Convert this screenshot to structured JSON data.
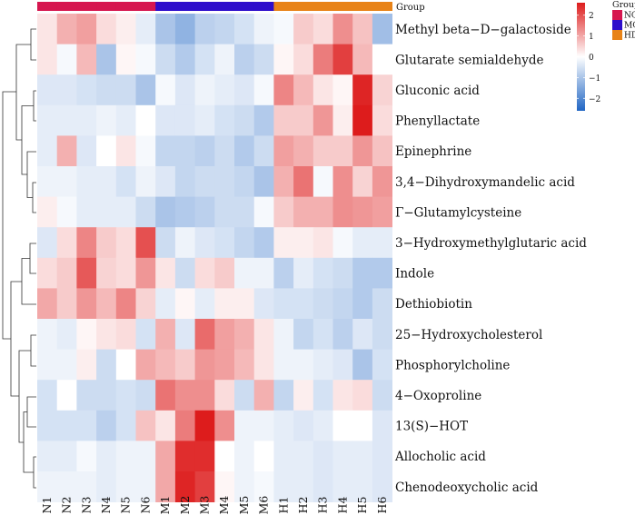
{
  "chart_data": {
    "type": "heatmap",
    "title": "",
    "columns": [
      "N1",
      "N2",
      "N3",
      "N4",
      "N5",
      "N6",
      "M1",
      "M2",
      "M3",
      "M4",
      "M5",
      "M6",
      "H1",
      "H2",
      "H3",
      "H4",
      "H5",
      "H6"
    ],
    "groups": [
      "NG",
      "NG",
      "NG",
      "NG",
      "NG",
      "NG",
      "MG",
      "MG",
      "MG",
      "MG",
      "MG",
      "MG",
      "HDG",
      "HDG",
      "HDG",
      "HDG",
      "HDG",
      "HDG"
    ],
    "group_annotation_label": "Group",
    "group_legend": {
      "title": "Group",
      "items": [
        {
          "name": "NG",
          "color": "#d6174f"
        },
        {
          "name": "MG",
          "color": "#2d0ecb"
        },
        {
          "name": "HDG",
          "color": "#e88318"
        }
      ]
    },
    "colorbar": {
      "ticks": [
        2,
        1,
        0,
        -1,
        -2
      ],
      "tick_labels": [
        "2",
        "1",
        "0",
        "−1",
        "−2"
      ],
      "range": [
        -2.6,
        2.6
      ],
      "low_color": "#2166c4",
      "mid_color": "#ffffff",
      "high_color": "#dd1c1c"
    },
    "rows": [
      {
        "name": "Methyl beta−D−galactoside",
        "values": [
          0.3,
          0.9,
          1.1,
          0.4,
          0.2,
          -0.3,
          -1.0,
          -1.3,
          -0.8,
          -0.7,
          -0.5,
          -0.2,
          -0.1,
          0.6,
          0.4,
          1.3,
          0.7,
          -1.1
        ]
      },
      {
        "name": "Glutarate semialdehyde",
        "values": [
          0.3,
          -0.1,
          0.8,
          -1.0,
          0.1,
          -0.1,
          -0.6,
          -0.9,
          -0.5,
          -0.2,
          -0.8,
          -0.6,
          0.1,
          0.4,
          1.5,
          2.2,
          0.8,
          0.0
        ]
      },
      {
        "name": "Gluconic acid",
        "values": [
          -0.4,
          -0.4,
          -0.5,
          -0.6,
          -0.6,
          -1.0,
          -0.1,
          -0.4,
          -0.2,
          -0.3,
          -0.4,
          -0.1,
          1.4,
          0.8,
          0.3,
          0.1,
          2.5,
          0.5
        ]
      },
      {
        "name": "Phenyllactate",
        "values": [
          -0.3,
          -0.3,
          -0.3,
          -0.2,
          -0.3,
          0.0,
          -0.4,
          -0.4,
          -0.3,
          -0.5,
          -0.6,
          -0.9,
          0.6,
          0.6,
          1.2,
          0.2,
          2.6,
          0.4
        ]
      },
      {
        "name": "Epinephrine",
        "values": [
          -0.3,
          0.9,
          -0.4,
          0.0,
          0.3,
          -0.1,
          -0.7,
          -0.7,
          -0.8,
          -0.6,
          -0.9,
          -0.6,
          1.1,
          0.9,
          0.6,
          0.6,
          1.2,
          0.7
        ]
      },
      {
        "name": "3,4−Dihydroxymandelic acid",
        "values": [
          -0.2,
          -0.2,
          -0.3,
          -0.3,
          -0.5,
          -0.2,
          -0.4,
          -0.7,
          -0.6,
          -0.6,
          -0.7,
          -1.0,
          0.9,
          1.6,
          -0.1,
          1.3,
          0.5,
          1.2
        ]
      },
      {
        "name": "Γ−Glutamylcysteine",
        "values": [
          0.2,
          -0.1,
          -0.3,
          -0.3,
          -0.3,
          -0.6,
          -1.0,
          -0.9,
          -0.8,
          -0.6,
          -0.6,
          -0.1,
          0.6,
          0.9,
          0.9,
          1.3,
          1.2,
          1.1
        ]
      },
      {
        "name": "3−Hydroxymethylglutaric acid",
        "values": [
          -0.4,
          0.4,
          1.4,
          0.6,
          0.4,
          2.0,
          -0.6,
          -0.2,
          -0.4,
          -0.5,
          -0.7,
          -0.9,
          0.2,
          0.2,
          0.3,
          -0.1,
          -0.3,
          -0.3
        ]
      },
      {
        "name": "Indole",
        "values": [
          0.4,
          0.6,
          1.9,
          0.5,
          0.4,
          1.2,
          0.3,
          -0.6,
          0.4,
          0.6,
          -0.2,
          -0.2,
          -0.8,
          -0.3,
          -0.5,
          -0.6,
          -0.9,
          -0.9
        ]
      },
      {
        "name": "Dethiobiotin",
        "values": [
          1.0,
          0.6,
          1.2,
          0.8,
          1.4,
          0.5,
          -0.3,
          0.1,
          -0.3,
          0.2,
          0.2,
          -0.4,
          -0.5,
          -0.5,
          -0.6,
          -0.7,
          -0.9,
          -0.6
        ]
      },
      {
        "name": "25−Hydroxycholesterol",
        "values": [
          -0.2,
          -0.3,
          0.1,
          0.3,
          0.4,
          -0.5,
          0.9,
          -0.4,
          1.7,
          1.1,
          0.9,
          0.3,
          -0.2,
          -0.7,
          -0.5,
          -0.8,
          -0.4,
          -0.6
        ]
      },
      {
        "name": "Phosphorylcholine",
        "values": [
          -0.2,
          -0.2,
          0.2,
          -0.6,
          0.0,
          1.0,
          0.8,
          0.6,
          1.2,
          1.1,
          0.8,
          0.3,
          -0.2,
          -0.2,
          -0.3,
          -0.4,
          -1.0,
          -0.5
        ]
      },
      {
        "name": "4−Oxoproline",
        "values": [
          -0.5,
          0.0,
          -0.6,
          -0.6,
          -0.5,
          -0.6,
          1.6,
          1.3,
          1.3,
          0.4,
          -0.6,
          0.9,
          -0.7,
          0.2,
          -0.5,
          0.3,
          0.4,
          -0.6
        ]
      },
      {
        "name": "13(S)−HOT",
        "values": [
          -0.5,
          -0.5,
          -0.5,
          -0.8,
          -0.5,
          0.7,
          0.3,
          1.5,
          2.6,
          1.3,
          -0.2,
          -0.2,
          -0.3,
          -0.4,
          -0.3,
          0.0,
          0.0,
          -0.4
        ]
      },
      {
        "name": "Allocholic acid",
        "values": [
          -0.3,
          -0.3,
          -0.1,
          -0.3,
          -0.2,
          -0.2,
          1.0,
          2.4,
          2.4,
          0.0,
          -0.2,
          0.0,
          -0.3,
          -0.3,
          -0.4,
          -0.3,
          -0.3,
          -0.4
        ]
      },
      {
        "name": "Chenodeoxycholic acid",
        "values": [
          -0.2,
          -0.2,
          -0.2,
          -0.3,
          -0.2,
          -0.2,
          1.0,
          2.5,
          2.2,
          0.1,
          -0.2,
          -0.1,
          -0.3,
          -0.3,
          -0.4,
          -0.3,
          -0.3,
          -0.4
        ]
      }
    ]
  }
}
